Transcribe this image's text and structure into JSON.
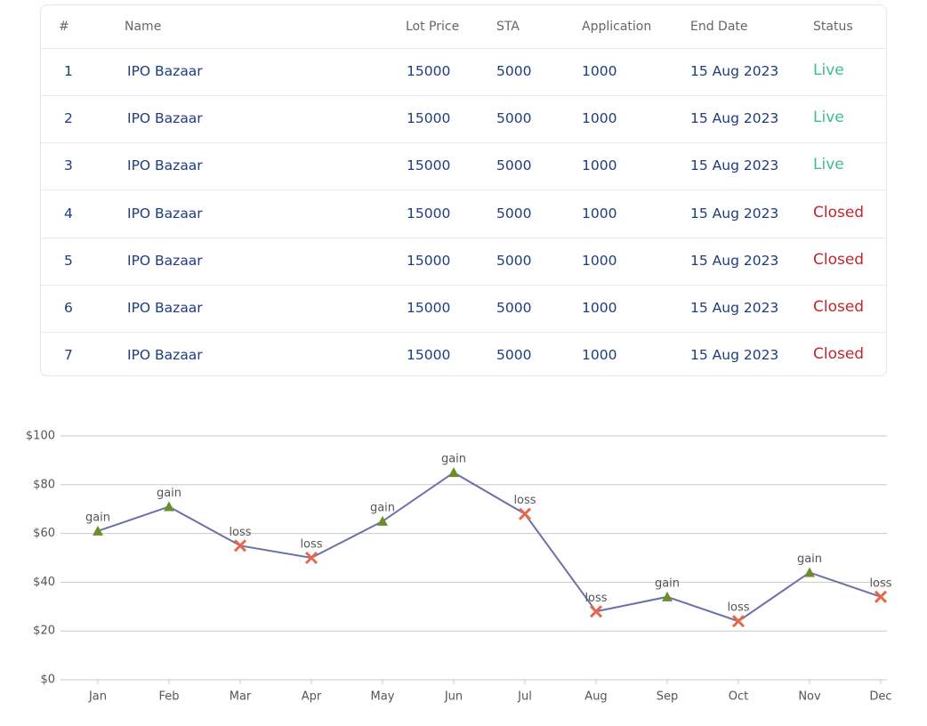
{
  "table": {
    "headers": [
      "#",
      "Name",
      "Lot Price",
      "STA",
      "Application",
      "End Date",
      "Status"
    ],
    "rows": [
      [
        1,
        "IPO Bazaar",
        15000,
        5000,
        1000,
        "15 Aug 2023",
        "Live"
      ],
      [
        2,
        "IPO Bazaar",
        15000,
        5000,
        1000,
        "15 Aug 2023",
        "Live"
      ],
      [
        3,
        "IPO Bazaar",
        15000,
        5000,
        1000,
        "15 Aug 2023",
        "Live"
      ],
      [
        4,
        "IPO Bazaar",
        15000,
        5000,
        1000,
        "15 Aug 2023",
        "Closed"
      ],
      [
        5,
        "IPO Bazaar",
        15000,
        5000,
        1000,
        "15 Aug 2023",
        "Closed"
      ],
      [
        6,
        "IPO Bazaar",
        15000,
        5000,
        1000,
        "15 Aug 2023",
        "Closed"
      ],
      [
        7,
        "IPO Bazaar",
        15000,
        5000,
        1000,
        "15 Aug 2023",
        "Closed"
      ]
    ],
    "status_colors": {
      "Live": "#3dbb94",
      "Closed": "#c0282d"
    }
  },
  "chart_data": {
    "type": "line",
    "categories": [
      "Jan",
      "Feb",
      "Mar",
      "Apr",
      "May",
      "Jun",
      "Jul",
      "Aug",
      "Sep",
      "Oct",
      "Nov",
      "Dec"
    ],
    "values": [
      61,
      71,
      55,
      50,
      65,
      85,
      68,
      28,
      34,
      24,
      44,
      34
    ],
    "point_labels": [
      "gain",
      "gain",
      "loss",
      "loss",
      "gain",
      "gain",
      "loss",
      "loss",
      "gain",
      "loss",
      "gain",
      "loss"
    ],
    "marker_styles": {
      "gain": {
        "shape": "triangle",
        "color": "#6b8e2a"
      },
      "loss": {
        "shape": "cross",
        "color": "#e8674a"
      }
    },
    "color": "#6c70a8",
    "ylim": [
      0,
      100
    ],
    "yticks": [
      {
        "value": 0,
        "label": "$0"
      },
      {
        "value": 20,
        "label": "$20"
      },
      {
        "value": 40,
        "label": "$40"
      },
      {
        "value": 60,
        "label": "$60"
      },
      {
        "value": 80,
        "label": "$80"
      },
      {
        "value": 100,
        "label": "$100"
      }
    ],
    "grid": true
  }
}
